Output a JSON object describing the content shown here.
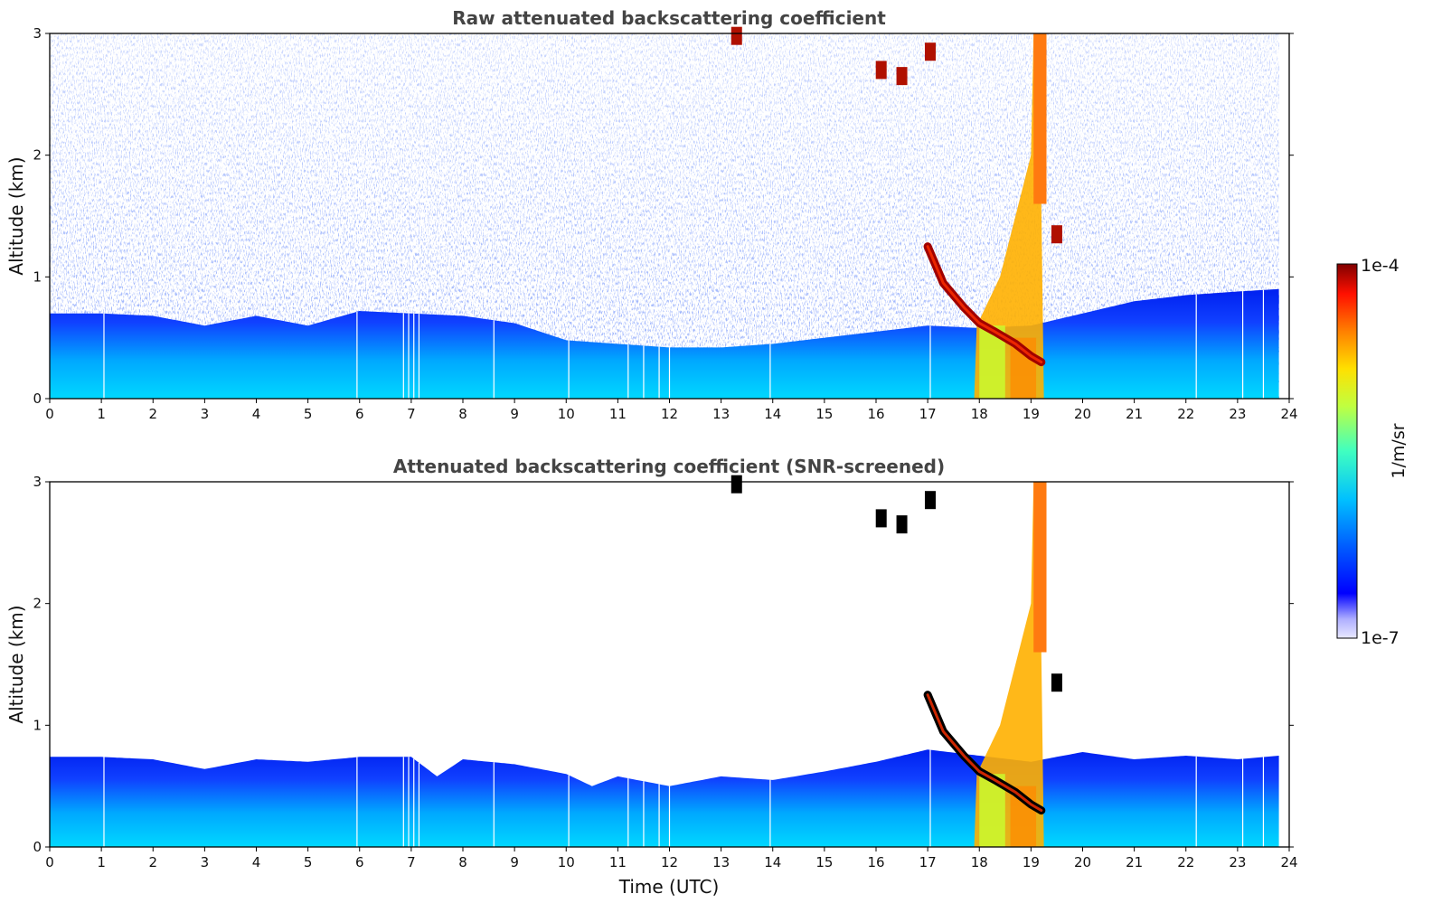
{
  "chart_data": [
    {
      "type": "heatmap",
      "title": "Raw attenuated backscattering coefficient",
      "xlabel": "",
      "ylabel": "Altitude (km)",
      "xlim": [
        0,
        24
      ],
      "ylim": [
        0,
        3
      ],
      "xticks": [
        0,
        1,
        2,
        3,
        4,
        5,
        6,
        7,
        8,
        9,
        10,
        11,
        12,
        13,
        14,
        15,
        16,
        17,
        18,
        19,
        20,
        21,
        22,
        23,
        24
      ],
      "yticks": [
        0,
        1,
        2,
        3
      ],
      "x_data_end": 23.8,
      "boundary_layer_top_km": [
        [
          0,
          0.7
        ],
        [
          1,
          0.7
        ],
        [
          2,
          0.68
        ],
        [
          3,
          0.6
        ],
        [
          4,
          0.68
        ],
        [
          5,
          0.6
        ],
        [
          6,
          0.72
        ],
        [
          7,
          0.7
        ],
        [
          8,
          0.68
        ],
        [
          9,
          0.62
        ],
        [
          10,
          0.48
        ],
        [
          11,
          0.45
        ],
        [
          12,
          0.42
        ],
        [
          13,
          0.42
        ],
        [
          14,
          0.45
        ],
        [
          15,
          0.5
        ],
        [
          16,
          0.55
        ],
        [
          17,
          0.6
        ],
        [
          18,
          0.58
        ],
        [
          19,
          0.6
        ],
        [
          20,
          0.7
        ],
        [
          21,
          0.8
        ],
        [
          22,
          0.85
        ],
        [
          23,
          0.88
        ],
        [
          23.8,
          0.9
        ]
      ],
      "features": [
        {
          "name": "descending cloud layer",
          "x": [
            17.0,
            17.3,
            17.7,
            18.0,
            18.3,
            18.7,
            19.0,
            19.2
          ],
          "top_km": [
            1.25,
            0.95,
            0.75,
            0.62,
            0.55,
            0.45,
            0.35,
            0.3
          ],
          "level": "high"
        },
        {
          "name": "precipitation column",
          "x": [
            17.9,
            19.2
          ],
          "y": [
            0,
            3.0
          ],
          "level": "mid-high"
        },
        {
          "name": "high cloud fragments",
          "points": [
            [
              13.3,
              2.98
            ],
            [
              16.1,
              2.7
            ],
            [
              16.5,
              2.65
            ],
            [
              17.05,
              2.85
            ],
            [
              19.5,
              1.35
            ]
          ],
          "level": "high"
        }
      ],
      "missing_profiles_hours": [
        1.05,
        5.95,
        6.85,
        6.95,
        7.05,
        7.15,
        8.6,
        10.05,
        11.2,
        11.5,
        11.8,
        12.0,
        13.95,
        17.05,
        22.2,
        23.1,
        23.5
      ],
      "colorbar": {
        "min": "1e-7",
        "max": "1e-4",
        "label": "1/m/sr",
        "scale": "log",
        "colormap": "jet"
      }
    },
    {
      "type": "heatmap",
      "title": "Attenuated backscattering coefficient (SNR-screened)",
      "xlabel": "Time (UTC)",
      "ylabel": "Altitude (km)",
      "xlim": [
        0,
        24
      ],
      "ylim": [
        0,
        3
      ],
      "xticks": [
        0,
        1,
        2,
        3,
        4,
        5,
        6,
        7,
        8,
        9,
        10,
        11,
        12,
        13,
        14,
        15,
        16,
        17,
        18,
        19,
        20,
        21,
        22,
        23,
        24
      ],
      "yticks": [
        0,
        1,
        2,
        3
      ],
      "x_data_end": 23.8,
      "boundary_layer_top_km": [
        [
          0,
          0.74
        ],
        [
          1,
          0.74
        ],
        [
          2,
          0.72
        ],
        [
          3,
          0.64
        ],
        [
          4,
          0.72
        ],
        [
          5,
          0.7
        ],
        [
          6,
          0.74
        ],
        [
          7,
          0.74
        ],
        [
          7.5,
          0.58
        ],
        [
          8,
          0.72
        ],
        [
          9,
          0.68
        ],
        [
          10,
          0.6
        ],
        [
          10.5,
          0.5
        ],
        [
          11,
          0.58
        ],
        [
          12,
          0.5
        ],
        [
          13,
          0.58
        ],
        [
          14,
          0.55
        ],
        [
          15,
          0.62
        ],
        [
          16,
          0.7
        ],
        [
          17,
          0.8
        ],
        [
          18,
          0.75
        ],
        [
          19,
          0.7
        ],
        [
          20,
          0.78
        ],
        [
          21,
          0.72
        ],
        [
          22,
          0.75
        ],
        [
          23,
          0.72
        ],
        [
          23.8,
          0.75
        ]
      ]
    }
  ]
}
